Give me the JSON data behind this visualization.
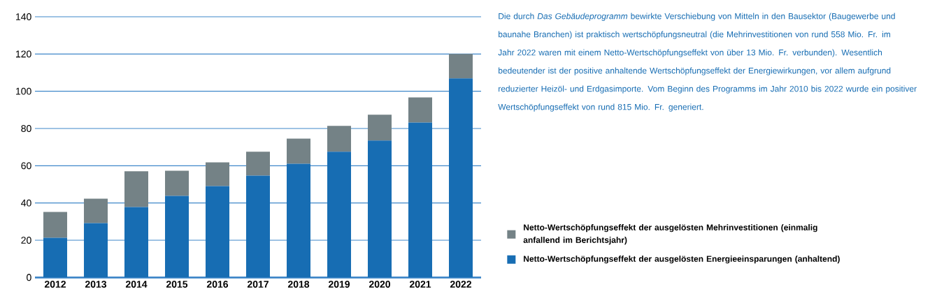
{
  "chart_data": {
    "type": "bar",
    "stacked": true,
    "categories": [
      "2012",
      "2013",
      "2014",
      "2015",
      "2016",
      "2017",
      "2018",
      "2019",
      "2020",
      "2021",
      "2022"
    ],
    "series": [
      {
        "name": "Netto-Wertschöpfungseffekt der ausgelösten Energieeinsparungen (anhaltend)",
        "color": "#176db3",
        "values": [
          21.3,
          29.2,
          37.8,
          43.8,
          49.1,
          54.7,
          61.1,
          67.5,
          73.5,
          83.2,
          106.9
        ]
      },
      {
        "name": "Netto-Wertschöpfungseffekt der ausgelösten Mehrinvestitionen (einmalig anfallend im Berichtsjahr)",
        "color": "#748286",
        "values": [
          13.9,
          13.1,
          19.2,
          13.5,
          12.7,
          12.8,
          13.5,
          13.9,
          13.9,
          13.5,
          13.1
        ]
      }
    ],
    "ylim": [
      0,
      140
    ],
    "yticks": [
      0,
      20,
      40,
      60,
      80,
      100,
      120,
      140
    ],
    "grid": "y",
    "legend": "right",
    "annotations": [
      "Die durch *Das Gebäudeprogramm* bewirkte Verschiebung von Mitteln in den Bausektor (Baugewerbe und baunahe Branchen) ist praktisch wertschöpfungsneutral (die Mehrinvestitionen von rund 558 Mio. Fr. im Jahr 2022 waren mit einem Netto-Wertschöpfungseffekt von über 13 Mio. Fr. verbunden). Wesentlich bedeutender ist der positive anhaltende Wertschöpfungseffekt der Energiewirkungen, vor allem aufgrund reduzierter Heizöl- und Erdgasimporte. Vom Beginn des Programms im Jahr 2010 bis 2022 wurde ein positiver Wertschöpfungseffekt von rund 815 Mio. Fr. generiert."
    ]
  }
}
